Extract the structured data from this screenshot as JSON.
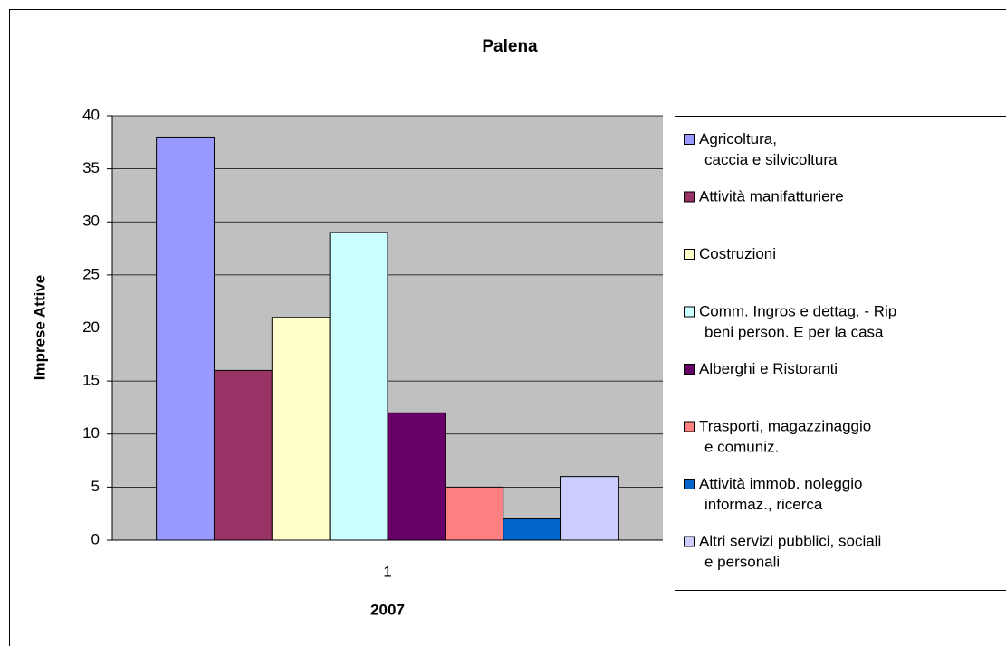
{
  "chart_data": {
    "type": "bar",
    "title": "Palena",
    "x_label": "2007",
    "y_label": "Imprese Attive",
    "categories": [
      "1"
    ],
    "series": [
      {
        "name": "Agricoltura,\ncaccia e silvicoltura",
        "color": "#9999ff",
        "values": [
          38
        ]
      },
      {
        "name": "Attività manifatturiere",
        "color": "#993366",
        "values": [
          16
        ]
      },
      {
        "name": "Costruzioni",
        "color": "#ffffcc",
        "values": [
          21
        ]
      },
      {
        "name": "Comm. Ingros e dettag. - Rip\nbeni person. E per la casa",
        "color": "#ccffff",
        "values": [
          29
        ]
      },
      {
        "name": "Alberghi e Ristoranti",
        "color": "#660066",
        "values": [
          12
        ]
      },
      {
        "name": "Trasporti, magazzinaggio\ne comuniz.",
        "color": "#ff8080",
        "values": [
          5
        ]
      },
      {
        "name": "Attività immob. noleggio\ninformaz., ricerca",
        "color": "#0066cc",
        "values": [
          2
        ]
      },
      {
        "name": "Altri servizi pubblici, sociali\ne personali",
        "color": "#ccccff",
        "values": [
          6
        ]
      }
    ],
    "ylim": [
      0,
      40
    ],
    "yticks": [
      0,
      5,
      10,
      15,
      20,
      25,
      30,
      35,
      40
    ],
    "grid": true,
    "legend": "right"
  }
}
